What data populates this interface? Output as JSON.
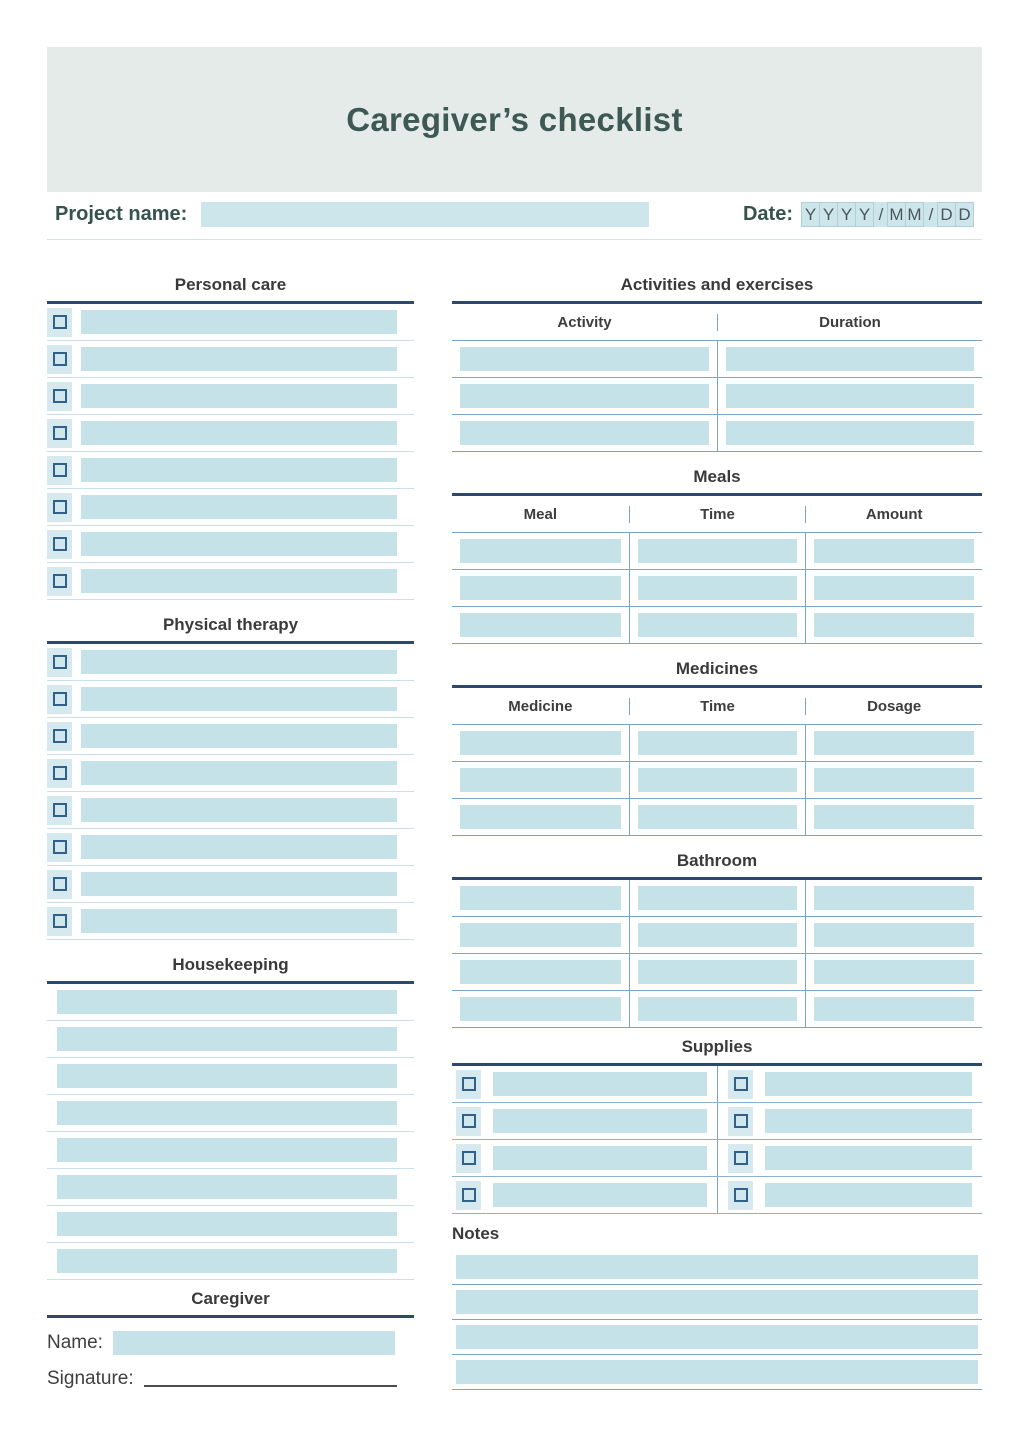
{
  "header": {
    "title": "Caregiver’s checklist",
    "project_label": "Project name:",
    "project_value": "",
    "date_label": "Date:",
    "date_boxes": [
      "Y",
      "Y",
      "Y",
      "Y",
      "/",
      "M",
      "M",
      "/",
      "D",
      "D"
    ]
  },
  "left": {
    "personal_care": {
      "title": "Personal care",
      "rows": 8
    },
    "physical_therapy": {
      "title": "Physical therapy",
      "rows": 8
    },
    "housekeeping": {
      "title": "Housekeeping",
      "rows": 8
    },
    "caregiver": {
      "title": "Caregiver",
      "name_label": "Name:",
      "name_value": "",
      "signature_label": "Signature:"
    }
  },
  "right": {
    "activities": {
      "title": "Activities and exercises",
      "columns": [
        "Activity",
        "Duration"
      ],
      "rows": 3
    },
    "meals": {
      "title": "Meals",
      "columns": [
        "Meal",
        "Time",
        "Amount"
      ],
      "rows": 3
    },
    "medicines": {
      "title": "Medicines",
      "columns": [
        "Medicine",
        "Time",
        "Dosage"
      ],
      "rows": 3
    },
    "bathroom": {
      "title": "Bathroom",
      "columns_count": 3,
      "rows": 4
    },
    "supplies": {
      "title": "Supplies",
      "columns_count": 2,
      "rows": 4
    },
    "notes": {
      "title": "Notes",
      "rows": 4
    }
  },
  "colors": {
    "banner_bg": "#e4ebe9",
    "title_text": "#3e5954",
    "label_teal": "#35524d",
    "field_fill": "#c6e2e9",
    "checkbox_cell": "#d5e9ee",
    "checkbox_border": "#31608a",
    "heading_rule": "#2c4a6b",
    "table_line": "#7aa5c7",
    "row_line": "#cbdeed",
    "heading_text": "#3a3a3a"
  }
}
